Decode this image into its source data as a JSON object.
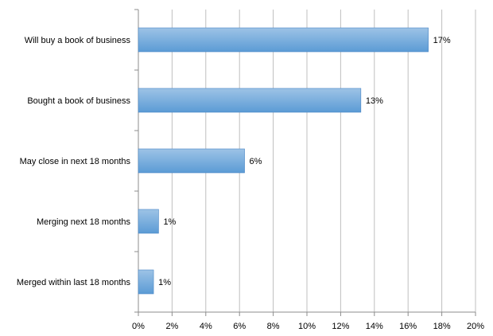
{
  "chart_data": {
    "type": "bar",
    "orientation": "horizontal",
    "title": "",
    "xlabel": "",
    "ylabel": "",
    "categories": [
      "Will buy a book of business",
      "Bought a book of business",
      "May close in next 18 months",
      "Merging next 18 months",
      "Merged within last 18 months"
    ],
    "values": [
      17.2,
      13.2,
      6.3,
      1.2,
      0.9
    ],
    "data_labels": [
      "17%",
      "13%",
      "6%",
      "1%",
      "1%"
    ],
    "xlim": [
      0,
      20
    ],
    "xticks": [
      0,
      2,
      4,
      6,
      8,
      10,
      12,
      14,
      16,
      18,
      20
    ],
    "xtick_labels": [
      "0%",
      "2%",
      "4%",
      "6%",
      "8%",
      "10%",
      "12%",
      "14%",
      "16%",
      "18%",
      "20%"
    ],
    "grid": "vertical",
    "legend": "none",
    "bar_color": "#5b9bd5",
    "bar_color_light": "#9dc3e6"
  }
}
